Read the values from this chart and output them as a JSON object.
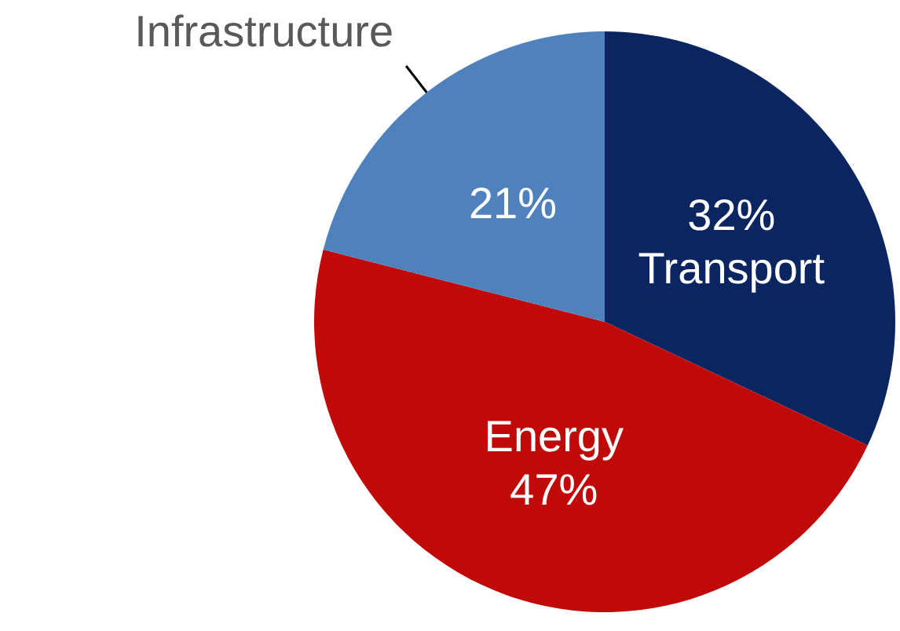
{
  "chart_data": {
    "type": "pie",
    "categories": [
      "Transport",
      "Energy",
      "Infrastructure"
    ],
    "values": [
      32,
      47,
      21
    ],
    "colors": [
      "#0b2560",
      "#c00a0a",
      "#4f81bd"
    ],
    "value_labels": [
      "32%",
      "47%",
      "21%"
    ],
    "legend": false
  }
}
